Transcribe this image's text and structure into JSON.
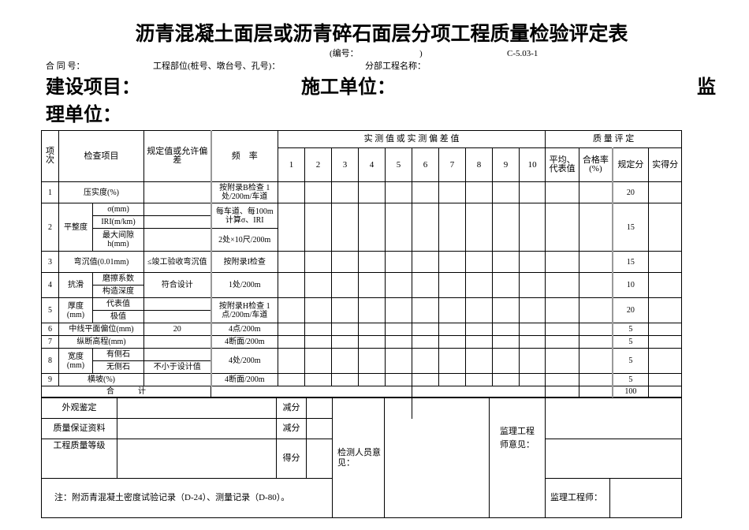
{
  "header": {
    "title": "沥青混凝土面层或沥青碎石面层分项工程质量检验评定表",
    "serial_label": "(编号：",
    "serial_close": ")",
    "form_code": "C-5.03-1",
    "contract_no": "合 同 号：",
    "location": "工程部位(桩号、墩台号、孔号)：",
    "subproject": "分部工程名称：",
    "construction_project": "建设项目：",
    "contractor": "施工单位：",
    "supervisor_a": "监",
    "supervisor_b": "理单位："
  },
  "table": {
    "col_item_no": "项次",
    "col_check_item": "检查项目",
    "col_spec": "规定值或允许偏差",
    "col_freq": "频　率",
    "col_measured": "实 测 值 或 实 测 偏 差 值",
    "col_quality": "质 量 评 定",
    "measure_numbers": [
      "1",
      "2",
      "3",
      "4",
      "5",
      "6",
      "7",
      "8",
      "9",
      "10"
    ],
    "col_avg": "平均、代表值",
    "col_pass_rate": "合格率(%)",
    "col_spec_score": "规定分",
    "col_actual_score": "实得分",
    "rows": [
      {
        "no": "1",
        "item": "压实度(%)",
        "spec": "",
        "freq": "按附录B检查 1处/200m/车道",
        "score": "20"
      },
      {
        "no": "2",
        "item": "平整度",
        "subs": [
          "σ(mm)",
          "IRI(m/km)",
          "最大间隙h(mm)"
        ],
        "freq1": "每车道、每100m 计算σ、IRI",
        "freq2": "2处×10尺/200m",
        "score": "15"
      },
      {
        "no": "3",
        "item": "弯沉值(0.01mm)",
        "spec": "≤竣工验收弯沉值",
        "freq": "按附录I检查",
        "score": "15"
      },
      {
        "no": "4",
        "item": "抗滑",
        "subs": [
          "磨擦系数",
          "构造深度"
        ],
        "spec": "符合设计",
        "freq": "1处/200m",
        "score": "10"
      },
      {
        "no": "5",
        "item": "厚度(mm)",
        "subs": [
          "代表值",
          "极值"
        ],
        "freq": "按附录H检查 1点/200m/车道",
        "score": "20"
      },
      {
        "no": "6",
        "item": "中线平面偏位(mm)",
        "spec": "20",
        "freq": "4点/200m",
        "score": "5"
      },
      {
        "no": "7",
        "item": "纵断高程(mm)",
        "spec": "",
        "freq": "4断面/200m",
        "score": "5"
      },
      {
        "no": "8",
        "item": "宽度(mm)",
        "subs": [
          "有侧石",
          "无侧石"
        ],
        "spec2": "不小于设计值",
        "freq": "4处/200m",
        "score": "5"
      },
      {
        "no": "9",
        "item": "横坡(%)",
        "spec": "",
        "freq": "4断面/200m",
        "score": "5"
      }
    ],
    "total_label": "合　　　计",
    "total_score": "100"
  },
  "bottom": {
    "appearance": "外观鉴定",
    "deduct": "减分",
    "quality_docs": "质量保证资料",
    "grade": "工程质量等级",
    "score": "得分",
    "inspector_opinion": "检测人员意　见：",
    "supervisor_opinion": "监理工程师意见：",
    "note": "注：附沥青混凝土密度试验记录（D-24）、测量记录（D-80）。",
    "supervisor_engineer": "监理工程师："
  }
}
